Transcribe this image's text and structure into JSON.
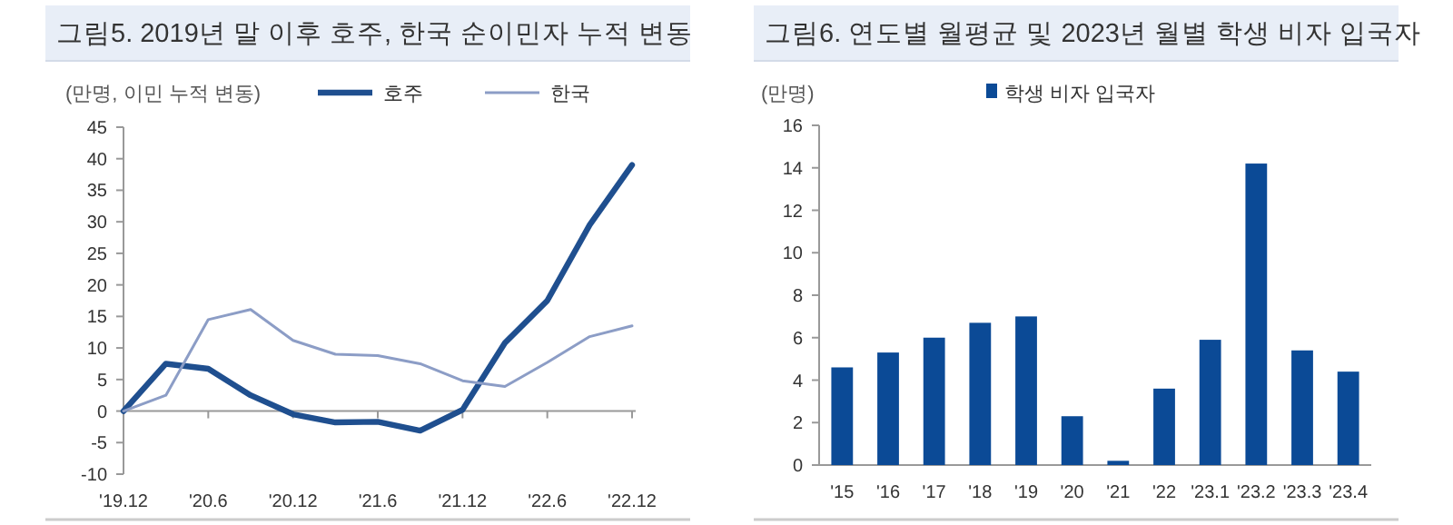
{
  "chart_data": [
    {
      "type": "line",
      "title": "그림5. 2019년 말 이후 호주, 한국 순이민자 누적 변동",
      "ylabel": "(만명, 이민 누적 변동)",
      "categories": [
        "'19.12",
        null,
        "'20.6",
        null,
        "'20.12",
        null,
        "'21.6",
        null,
        "'21.12",
        null,
        "'22.6",
        null,
        "'22.12"
      ],
      "series": [
        {
          "name": "호주",
          "color": "#1f4f8f",
          "values": [
            0,
            7.5,
            6.7,
            2.5,
            -0.5,
            -1.8,
            -1.7,
            -3.1,
            0.2,
            10.8,
            17.5,
            29.5,
            39
          ]
        },
        {
          "name": "한국",
          "color": "#8c9dc6",
          "values": [
            0,
            2.5,
            14.5,
            16.1,
            11.2,
            9,
            8.8,
            7.5,
            4.8,
            3.9,
            7.7,
            11.8,
            13.5
          ]
        }
      ],
      "ylim": [
        -10,
        45
      ],
      "yticks": [
        -10,
        -5,
        0,
        5,
        10,
        15,
        20,
        25,
        30,
        35,
        40,
        45
      ],
      "legend": "top right"
    },
    {
      "type": "bar",
      "title": "그림6. 연도별 월평균 및 2023년 월별 학생 비자 입국자",
      "ylabel": "(만명)",
      "categories": [
        "'15",
        "'16",
        "'17",
        "'18",
        "'19",
        "'20",
        "'21",
        "'22",
        "'23.1",
        "'23.2",
        "'23.3",
        "'23.4"
      ],
      "series": [
        {
          "name": "학생 비자 입국자",
          "color": "#0b4a96",
          "values": [
            4.6,
            5.3,
            6,
            6.7,
            7,
            2.3,
            0.2,
            3.6,
            5.9,
            14.2,
            5.4,
            4.4
          ]
        }
      ],
      "ylim": [
        0,
        16
      ],
      "yticks": [
        0,
        2,
        4,
        6,
        8,
        10,
        12,
        14,
        16
      ],
      "legend": "top"
    }
  ]
}
